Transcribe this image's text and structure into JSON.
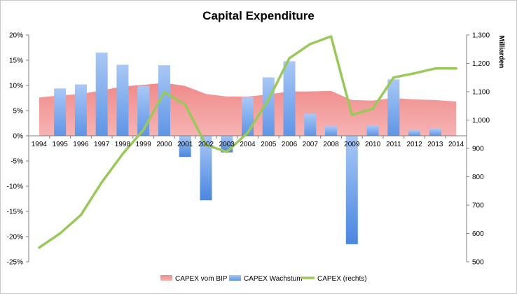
{
  "chart_data": {
    "type": "bar",
    "title": "Capital Expenditure",
    "categories": [
      "1994",
      "1995",
      "1996",
      "1997",
      "1998",
      "1999",
      "2000",
      "2001",
      "2002",
      "2003",
      "2004",
      "2005",
      "2006",
      "2007",
      "2008",
      "2009",
      "2010",
      "2011",
      "2012",
      "2013",
      "2014"
    ],
    "y_left": {
      "ylim": [
        -0.25,
        0.2
      ],
      "ticks": [
        "-25%",
        "-20%",
        "-15%",
        "-10%",
        "-5%",
        "0%",
        "5%",
        "10%",
        "15%",
        "20%"
      ],
      "tick_values": [
        -0.25,
        -0.2,
        -0.15,
        -0.1,
        -0.05,
        0,
        0.05,
        0.1,
        0.15,
        0.2
      ]
    },
    "y_right": {
      "label": "Milliarden",
      "ylim": [
        500,
        1300
      ],
      "ticks": [
        "500",
        "600",
        "700",
        "800",
        "900",
        "1,000",
        "1,100",
        "1,200",
        "1,300"
      ],
      "tick_values": [
        500,
        600,
        700,
        800,
        900,
        1000,
        1100,
        1200,
        1300
      ]
    },
    "series": [
      {
        "name": "CAPEX vom BIP",
        "type": "area",
        "axis": "left",
        "color": "#ee7b7b",
        "values": [
          0.076,
          0.08,
          0.083,
          0.09,
          0.098,
          0.101,
          0.105,
          0.099,
          0.083,
          0.078,
          0.078,
          0.082,
          0.088,
          0.088,
          0.089,
          0.071,
          0.07,
          0.075,
          0.072,
          0.071,
          0.068
        ]
      },
      {
        "name": "CAPEX Wachstum",
        "type": "bar",
        "axis": "left",
        "color": "#7aaaf0",
        "values": [
          null,
          0.094,
          0.102,
          0.165,
          0.141,
          0.099,
          0.14,
          -0.042,
          -0.128,
          -0.033,
          0.077,
          0.116,
          0.148,
          0.044,
          0.019,
          -0.215,
          0.021,
          0.112,
          0.011,
          0.014,
          null
        ]
      },
      {
        "name": "CAPEX (rechts)",
        "type": "line",
        "axis": "right",
        "color": "#9bc85b",
        "values": [
          550,
          600,
          665,
          780,
          880,
          965,
          1098,
          1055,
          912,
          888,
          955,
          1072,
          1218,
          1268,
          1295,
          1018,
          1040,
          1150,
          1165,
          1182,
          1182
        ]
      }
    ],
    "legend": {
      "position": "bottom",
      "entries": [
        "CAPEX vom BIP",
        "CAPEX Wachstum",
        "CAPEX (rechts)"
      ]
    },
    "grid": false
  }
}
